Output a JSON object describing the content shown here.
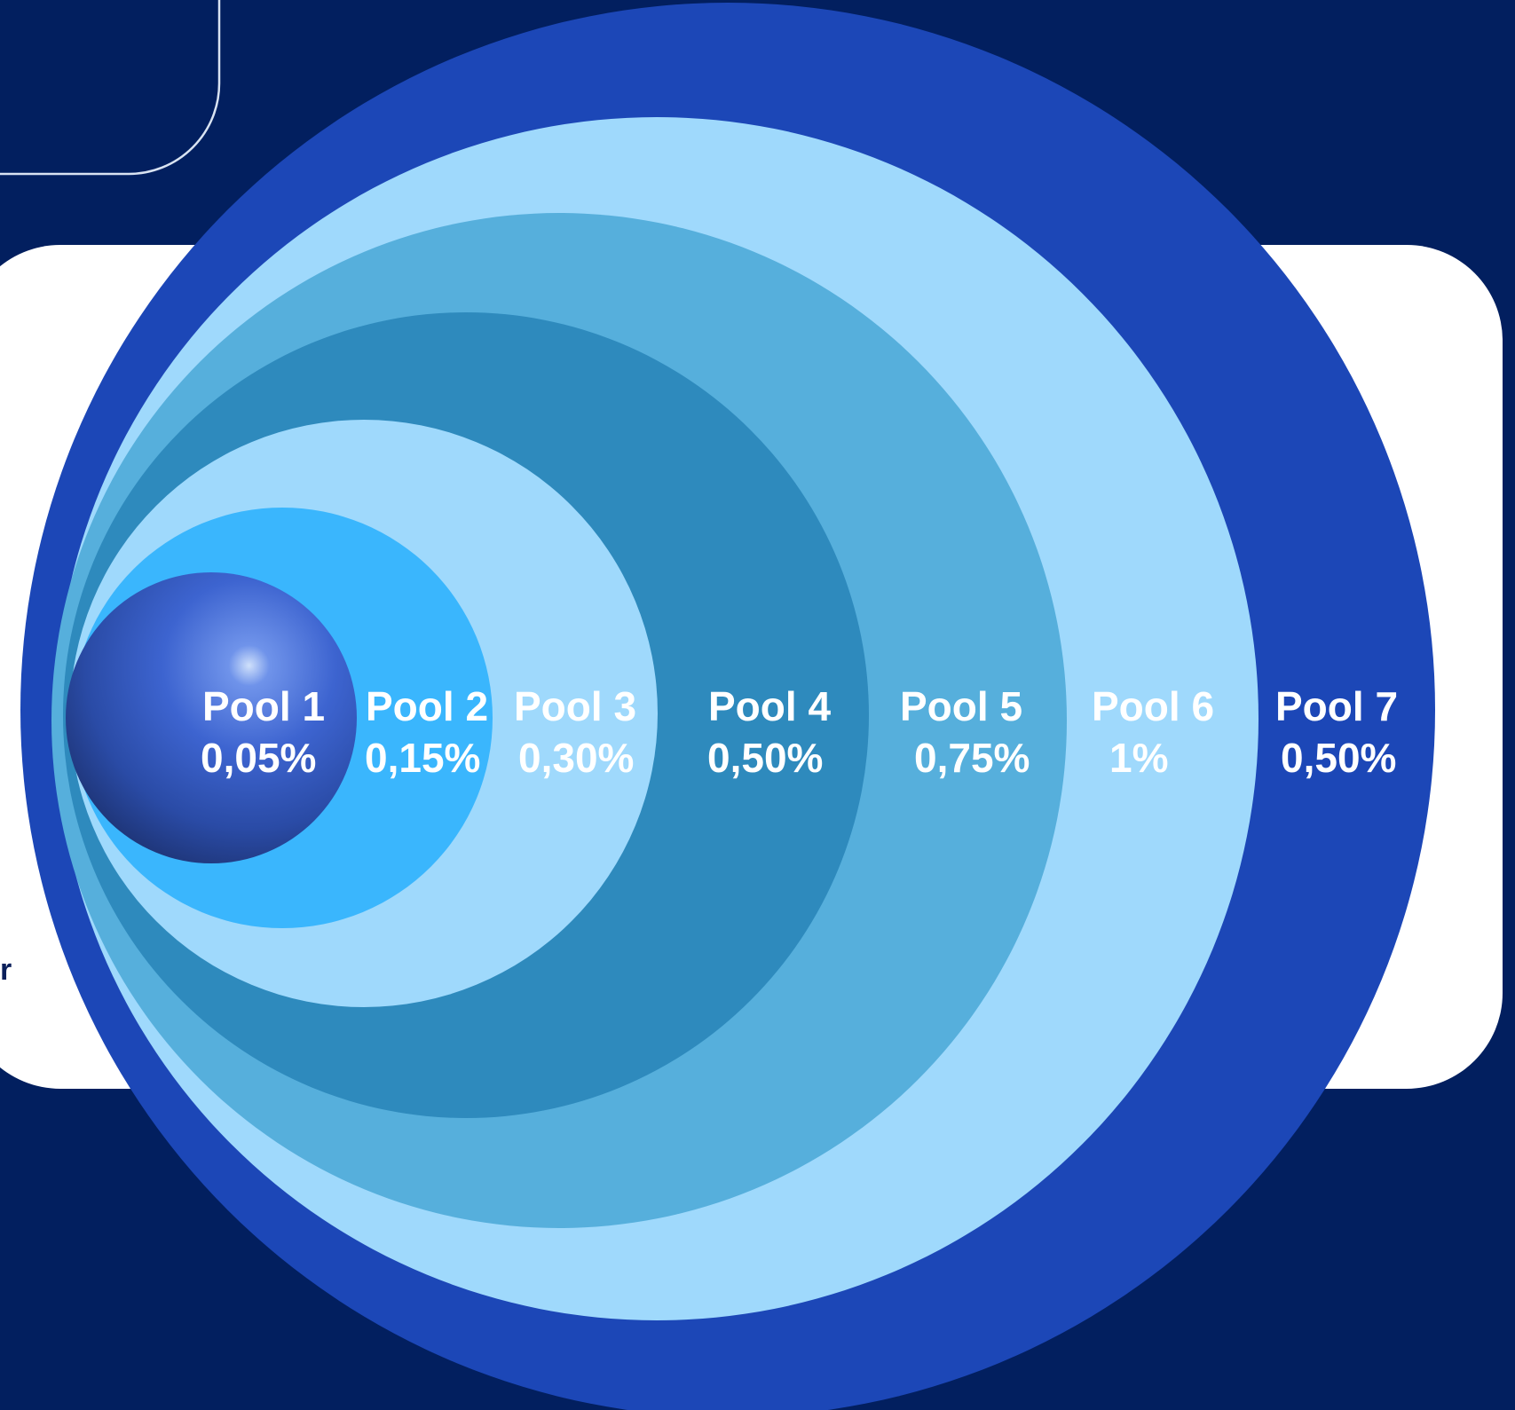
{
  "side_text": "r",
  "pools": [
    {
      "name": "Pool 1",
      "rate": "0,05%"
    },
    {
      "name": "Pool 2",
      "rate": "0,15%"
    },
    {
      "name": "Pool 3",
      "rate": "0,30%"
    },
    {
      "name": "Pool 4",
      "rate": "0,50%"
    },
    {
      "name": "Pool 5",
      "rate": "0,75%"
    },
    {
      "name": "Pool 6",
      "rate": "1%"
    },
    {
      "name": "Pool 7",
      "rate": "0,50%"
    }
  ],
  "colors": {
    "background": "#021f5f",
    "card": "#ffffff",
    "pool_7": "#1c47b7",
    "pool_6": "#9fd9fc",
    "pool_5": "#56afdc",
    "pool_4": "#2e8abd",
    "pool_3": "#9fd9fc",
    "pool_2": "#3ab6fd",
    "pool_1_sphere": "#3c66d2",
    "label_text": "#ffffff"
  }
}
